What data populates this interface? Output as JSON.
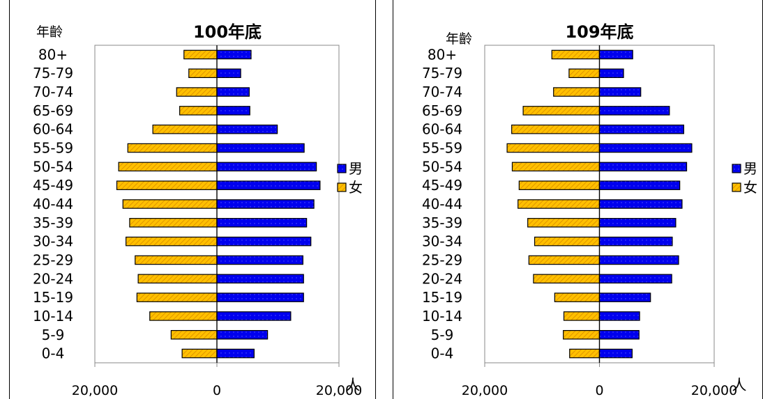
{
  "chart_data": [
    {
      "type": "bar",
      "orientation": "horizontal",
      "layout": "population-pyramid",
      "title": "100年底",
      "ylabel": "年齡",
      "xlabel": "人",
      "xlim": [
        -20000,
        20000
      ],
      "xticks": [
        "20,000",
        "0",
        "20,000"
      ],
      "grid": false,
      "legend_position": "right",
      "categories": [
        "80+",
        "75-79",
        "70-74",
        "65-69",
        "60-64",
        "55-59",
        "50-54",
        "45-49",
        "40-44",
        "35-39",
        "30-34",
        "25-29",
        "20-24",
        "15-19",
        "10-14",
        "5-9",
        "0-4"
      ],
      "series": [
        {
          "name": "男",
          "color": "#0000ee",
          "pattern": "dots",
          "values": [
            5600,
            3900,
            5300,
            5400,
            9900,
            14300,
            16300,
            16900,
            15900,
            14700,
            15400,
            14100,
            14200,
            14200,
            12100,
            8300,
            6100
          ]
        },
        {
          "name": "女",
          "color": "#ffc000",
          "pattern": "diagonal-hatch",
          "values": [
            5400,
            4600,
            6600,
            6100,
            10500,
            14600,
            16100,
            16400,
            15400,
            14300,
            14900,
            13400,
            12900,
            13100,
            11000,
            7500,
            5700
          ]
        }
      ]
    },
    {
      "type": "bar",
      "orientation": "horizontal",
      "layout": "population-pyramid",
      "title": "109年底",
      "ylabel": "年齡",
      "xlabel": "人",
      "xlim": [
        -20000,
        20000
      ],
      "xticks": [
        "20,000",
        "0",
        "20,000"
      ],
      "grid": false,
      "legend_position": "right",
      "categories": [
        "80+",
        "75-79",
        "70-74",
        "65-69",
        "60-64",
        "55-59",
        "50-54",
        "45-49",
        "40-44",
        "35-39",
        "30-34",
        "25-29",
        "20-24",
        "15-19",
        "10-14",
        "5-9",
        "0-4"
      ],
      "series": [
        {
          "name": "男",
          "color": "#0000ee",
          "pattern": "dots",
          "values": [
            5800,
            4200,
            7200,
            12200,
            14700,
            16100,
            15200,
            14000,
            14400,
            13300,
            12700,
            13800,
            12600,
            8900,
            7000,
            6900,
            5700
          ]
        },
        {
          "name": "女",
          "color": "#ffc000",
          "pattern": "diagonal-hatch",
          "values": [
            8300,
            5300,
            8000,
            13300,
            15300,
            16100,
            15200,
            14000,
            14200,
            12500,
            11300,
            12300,
            11500,
            7800,
            6200,
            6300,
            5200
          ]
        }
      ]
    }
  ]
}
